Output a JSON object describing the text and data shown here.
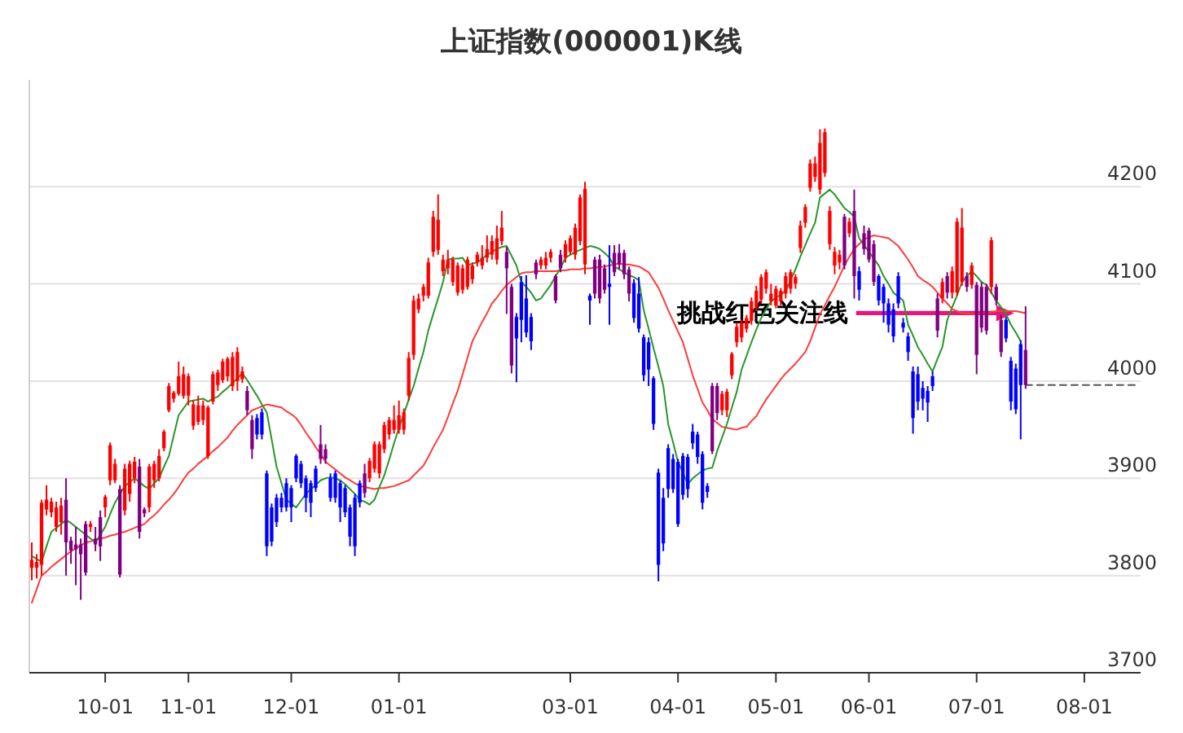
{
  "chart_data": {
    "type": "candlestick",
    "title": "上证指数(000001)K线",
    "categories": [
      null,
      null,
      null,
      null,
      null,
      null,
      null,
      null,
      null,
      null,
      null,
      null,
      null,
      null,
      null,
      "10-01",
      null,
      null,
      null,
      null,
      null,
      null,
      null,
      null,
      null,
      null,
      null,
      null,
      null,
      null,
      null,
      null,
      "11-01",
      null,
      null,
      null,
      null,
      null,
      null,
      null,
      null,
      null,
      null,
      null,
      null,
      null,
      null,
      null,
      null,
      null,
      null,
      null,
      null,
      "12-01",
      null,
      null,
      null,
      null,
      null,
      null,
      null,
      null,
      null,
      null,
      null,
      null,
      null,
      null,
      null,
      null,
      null,
      null,
      null,
      null,
      null,
      "01-01",
      null,
      null,
      null,
      null,
      null,
      null,
      null,
      null,
      null,
      null,
      null,
      null,
      null,
      null,
      null,
      null,
      null,
      null,
      null,
      null,
      null,
      null,
      null,
      null,
      null,
      null,
      null,
      null,
      null,
      null,
      null,
      null,
      null,
      null,
      "03-01",
      null,
      null,
      null,
      null,
      null,
      null,
      null,
      null,
      null,
      null,
      null,
      null,
      null,
      null,
      null,
      null,
      null,
      null,
      null,
      null,
      null,
      "04-01",
      null,
      null,
      null,
      null,
      null,
      null,
      null,
      null,
      null,
      null,
      null,
      null,
      null,
      null,
      null,
      null,
      null,
      null,
      null,
      "05-01",
      null,
      null,
      null,
      null,
      null,
      null,
      null,
      null,
      null,
      null,
      null,
      null,
      null,
      null,
      null,
      null,
      null,
      null,
      "06-01",
      null,
      null,
      null,
      null,
      null,
      null,
      null,
      null,
      null,
      null,
      null,
      null,
      null,
      null,
      null,
      null,
      null,
      null,
      null,
      null,
      null,
      "07-01",
      null,
      null,
      null,
      null,
      null,
      null,
      null,
      null,
      null,
      null,
      null,
      null,
      null,
      null,
      null,
      null,
      null,
      null,
      null,
      null,
      null,
      "08-01",
      null,
      null,
      null,
      null,
      null,
      null,
      null,
      null,
      null,
      null,
      null
    ],
    "ohlc": [
      [
        3808,
        3834,
        3795,
        3816
      ],
      [
        3808,
        3822,
        3797,
        3814
      ],
      [
        3811,
        3878,
        3800,
        3875
      ],
      [
        3868,
        3893,
        3862,
        3878
      ],
      [
        3865,
        3880,
        3860,
        3876
      ],
      [
        3850,
        3876,
        3845,
        3870
      ],
      [
        3855,
        3880,
        3842,
        3872
      ],
      [
        3878,
        3900,
        3800,
        3834
      ],
      [
        3836,
        3840,
        3812,
        3826
      ],
      [
        3832,
        3850,
        3790,
        3827
      ],
      [
        3832,
        3838,
        3775,
        3822
      ],
      [
        3853,
        3856,
        3800,
        3803
      ],
      [
        3850,
        3856,
        3845,
        3853
      ],
      [
        3838,
        3850,
        3825,
        3832
      ],
      [
        3860,
        3867,
        3815,
        3830
      ],
      [
        3870,
        3883,
        3860,
        3881
      ],
      [
        3898,
        3937,
        3893,
        3934
      ],
      [
        3898,
        3920,
        3895,
        3915
      ],
      [
        3889,
        3893,
        3798,
        3801
      ],
      [
        3867,
        3915,
        3862,
        3910
      ],
      [
        3884,
        3918,
        3876,
        3915
      ],
      [
        3900,
        3922,
        3895,
        3917
      ],
      [
        3912,
        3920,
        3838,
        3845
      ],
      [
        3868,
        3870,
        3860,
        3864
      ],
      [
        3870,
        3915,
        3865,
        3912
      ],
      [
        3898,
        3918,
        3890,
        3915
      ],
      [
        3900,
        3930,
        3897,
        3923
      ],
      [
        3931,
        3950,
        3928,
        3948
      ],
      [
        3970,
        3998,
        3968,
        3995
      ],
      [
        3982,
        3990,
        3978,
        3988
      ],
      [
        3987,
        4020,
        3985,
        4005
      ],
      [
        3985,
        4015,
        3982,
        4007
      ],
      [
        3985,
        4008,
        3975,
        4005
      ],
      [
        3954,
        3980,
        3950,
        3976
      ],
      [
        3958,
        3985,
        3955,
        3975
      ],
      [
        3960,
        3980,
        3955,
        3975
      ],
      [
        3923,
        3975,
        3920,
        3973
      ],
      [
        3979,
        4010,
        3976,
        4007
      ],
      [
        3996,
        4012,
        3990,
        4009
      ],
      [
        4001,
        4023,
        3998,
        4020
      ],
      [
        4005,
        4025,
        4000,
        4023
      ],
      [
        3995,
        4030,
        3990,
        4025
      ],
      [
        4000,
        4035,
        3990,
        4030
      ],
      [
        4002,
        4015,
        3998,
        4010
      ],
      [
        3990,
        3995,
        3965,
        3970
      ],
      [
        3960,
        3965,
        3920,
        3930
      ],
      [
        3962,
        3966,
        3940,
        3945
      ],
      [
        3968,
        3972,
        3940,
        3945
      ],
      [
        3905,
        3908,
        3820,
        3830
      ],
      [
        3870,
        3874,
        3830,
        3835
      ],
      [
        3880,
        3884,
        3850,
        3855
      ],
      [
        3880,
        3885,
        3865,
        3870
      ],
      [
        3895,
        3900,
        3866,
        3870
      ],
      [
        3890,
        3893,
        3855,
        3870
      ],
      [
        3923,
        3925,
        3896,
        3900
      ],
      [
        3915,
        3918,
        3890,
        3895
      ],
      [
        3900,
        3903,
        3865,
        3880
      ],
      [
        3895,
        3898,
        3860,
        3875
      ],
      [
        3910,
        3913,
        3886,
        3890
      ],
      [
        3935,
        3955,
        3915,
        3920
      ],
      [
        3930,
        3935,
        3915,
        3920
      ],
      [
        3900,
        3905,
        3876,
        3880
      ],
      [
        3905,
        3908,
        3875,
        3880
      ],
      [
        3895,
        3898,
        3855,
        3870
      ],
      [
        3890,
        3893,
        3860,
        3865
      ],
      [
        3870,
        3873,
        3830,
        3840
      ],
      [
        3880,
        3884,
        3820,
        3830
      ],
      [
        3895,
        3898,
        3870,
        3875
      ],
      [
        3905,
        3915,
        3880,
        3885
      ],
      [
        3900,
        3921,
        3896,
        3918
      ],
      [
        3910,
        3938,
        3906,
        3935
      ],
      [
        3905,
        3938,
        3900,
        3935
      ],
      [
        3930,
        3958,
        3926,
        3955
      ],
      [
        3945,
        3963,
        3940,
        3960
      ],
      [
        3950,
        3975,
        3946,
        3960
      ],
      [
        3950,
        3980,
        3946,
        3965
      ],
      [
        3950,
        3972,
        3945,
        3968
      ],
      [
        3985,
        4030,
        3980,
        4024
      ],
      [
        4027,
        4088,
        4022,
        4083
      ],
      [
        4074,
        4090,
        4070,
        4085
      ],
      [
        4088,
        4100,
        4082,
        4097
      ],
      [
        4088,
        4127,
        4085,
        4122
      ],
      [
        4133,
        4175,
        4128,
        4169
      ],
      [
        4135,
        4192,
        4130,
        4166
      ],
      [
        4113,
        4130,
        4108,
        4125
      ],
      [
        4116,
        4135,
        4110,
        4125
      ],
      [
        4102,
        4128,
        4098,
        4125
      ],
      [
        4091,
        4122,
        4088,
        4119
      ],
      [
        4094,
        4120,
        4090,
        4116
      ],
      [
        4097,
        4128,
        4094,
        4125
      ],
      [
        4105,
        4122,
        4100,
        4119
      ],
      [
        4122,
        4133,
        4118,
        4130
      ],
      [
        4119,
        4140,
        4115,
        4127
      ],
      [
        4127,
        4150,
        4122,
        4136
      ],
      [
        4130,
        4150,
        4125,
        4144
      ],
      [
        4125,
        4160,
        4120,
        4147
      ],
      [
        4144,
        4175,
        4140,
        4158
      ],
      [
        4133,
        4138,
        4069,
        4116
      ],
      [
        4097,
        4100,
        4008,
        4016
      ],
      [
        4066,
        4070,
        3999,
        4044
      ],
      [
        4102,
        4108,
        4040,
        4063
      ],
      [
        4085,
        4109,
        4045,
        4050
      ],
      [
        4066,
        4070,
        4032,
        4041
      ],
      [
        4122,
        4125,
        4105,
        4110
      ],
      [
        4119,
        4128,
        4115,
        4125
      ],
      [
        4119,
        4133,
        4115,
        4127
      ],
      [
        4127,
        4136,
        4122,
        4133
      ],
      [
        4108,
        4110,
        4080,
        4083
      ],
      [
        4130,
        4135,
        4112,
        4116
      ],
      [
        4127,
        4145,
        4122,
        4141
      ],
      [
        4133,
        4150,
        4130,
        4147
      ],
      [
        4130,
        4162,
        4125,
        4158
      ],
      [
        4144,
        4192,
        4140,
        4189
      ],
      [
        4120,
        4205,
        4110,
        4198
      ],
      [
        4088,
        4090,
        4058,
        4083
      ],
      [
        4125,
        4128,
        4085,
        4090
      ],
      [
        4125,
        4130,
        4080,
        4085
      ],
      [
        4116,
        4120,
        4090,
        4094
      ],
      [
        4100,
        4140,
        4058,
        4097
      ],
      [
        4132,
        4140,
        4108,
        4112
      ],
      [
        4132,
        4141,
        4115,
        4120
      ],
      [
        4132,
        4135,
        4105,
        4110
      ],
      [
        4115,
        4118,
        4082,
        4090
      ],
      [
        4101,
        4105,
        4060,
        4065
      ],
      [
        4090,
        4107,
        4050,
        4054
      ],
      [
        4045,
        4048,
        4000,
        4006
      ],
      [
        4040,
        4045,
        3995,
        4012
      ],
      [
        4003,
        4005,
        3950,
        3956
      ],
      [
        3906,
        3910,
        3794,
        3811
      ],
      [
        3880,
        3890,
        3825,
        3833
      ],
      [
        3931,
        3935,
        3880,
        3889
      ],
      [
        3920,
        3925,
        3885,
        3889
      ],
      [
        3917,
        3920,
        3850,
        3853
      ],
      [
        3923,
        3926,
        3878,
        3883
      ],
      [
        3922,
        3925,
        3880,
        3889
      ],
      [
        3948,
        3956,
        3930,
        3936
      ],
      [
        3945,
        3948,
        3915,
        3922
      ],
      [
        3925,
        3928,
        3868,
        3875
      ],
      [
        3892,
        3895,
        3880,
        3886
      ],
      [
        3995,
        3998,
        3925,
        3928
      ],
      [
        3995,
        3998,
        3960,
        3967
      ],
      [
        3970,
        3990,
        3965,
        3987
      ],
      [
        3970,
        3992,
        3963,
        3989
      ],
      [
        4006,
        4030,
        4002,
        4028
      ],
      [
        4040,
        4060,
        4035,
        4056
      ],
      [
        4045,
        4063,
        4040,
        4060
      ],
      [
        4054,
        4068,
        4050,
        4065
      ],
      [
        4062,
        4086,
        4058,
        4082
      ],
      [
        4076,
        4098,
        4072,
        4093
      ],
      [
        4084,
        4110,
        4080,
        4107
      ],
      [
        4095,
        4115,
        4090,
        4112
      ],
      [
        4082,
        4100,
        4078,
        4090
      ],
      [
        4078,
        4098,
        4075,
        4095
      ],
      [
        4082,
        4096,
        4078,
        4093
      ],
      [
        4090,
        4112,
        4085,
        4108
      ],
      [
        4095,
        4115,
        4090,
        4112
      ],
      [
        4100,
        4110,
        4095,
        4107
      ],
      [
        4137,
        4165,
        4132,
        4160
      ],
      [
        4163,
        4182,
        4158,
        4179
      ],
      [
        4199,
        4228,
        4195,
        4224
      ],
      [
        4210,
        4231,
        4205,
        4224
      ],
      [
        4197,
        4259,
        4192,
        4245
      ],
      [
        4214,
        4260,
        4210,
        4256
      ],
      [
        4141,
        4180,
        4135,
        4175
      ],
      [
        4119,
        4138,
        4110,
        4133
      ],
      [
        4122,
        4135,
        4115,
        4130
      ],
      [
        4169,
        4172,
        4115,
        4119
      ],
      [
        4152,
        4168,
        4148,
        4164
      ],
      [
        4175,
        4197,
        4085,
        4108
      ],
      [
        4113,
        4118,
        4083,
        4094
      ],
      [
        4152,
        4160,
        4130,
        4136
      ],
      [
        4155,
        4158,
        4122,
        4125
      ],
      [
        4141,
        4145,
        4098,
        4102
      ],
      [
        4108,
        4110,
        4078,
        4083
      ],
      [
        4097,
        4100,
        4060,
        4080
      ],
      [
        4080,
        4085,
        4050,
        4058
      ],
      [
        4074,
        4080,
        4040,
        4046
      ],
      [
        4108,
        4112,
        4075,
        4080
      ],
      [
        4060,
        4065,
        4050,
        4055
      ],
      [
        4046,
        4050,
        4021,
        4030
      ],
      [
        4010,
        4015,
        3946,
        3962
      ],
      [
        4007,
        4015,
        3970,
        3979
      ],
      [
        3993,
        4000,
        3970,
        3982
      ],
      [
        3990,
        3995,
        3958,
        3978
      ],
      [
        4005,
        4010,
        3990,
        3995
      ],
      [
        4085,
        4090,
        4045,
        4052
      ],
      [
        4085,
        4106,
        4080,
        4102
      ],
      [
        4108,
        4112,
        4085,
        4091
      ],
      [
        4091,
        4118,
        4085,
        4113
      ],
      [
        4091,
        4168,
        4088,
        4164
      ],
      [
        4102,
        4178,
        4098,
        4158
      ],
      [
        4108,
        4112,
        4092,
        4097
      ],
      [
        4099,
        4122,
        4095,
        4119
      ],
      [
        4099,
        4102,
        4007,
        4027
      ],
      [
        4097,
        4102,
        4050,
        4055
      ],
      [
        4097,
        4100,
        4048,
        4052
      ],
      [
        4097,
        4148,
        4090,
        4145
      ],
      [
        4097,
        4100,
        4078,
        4083
      ],
      [
        4063,
        4068,
        4025,
        4030
      ],
      [
        4063,
        4066,
        4040,
        4044
      ],
      [
        4021,
        4025,
        3970,
        3979
      ],
      [
        4013,
        4018,
        3966,
        3971
      ],
      [
        4038,
        4042,
        3940,
        3996
      ],
      [
        4032,
        4077,
        3992,
        3996
      ],
      null,
      null,
      null,
      null,
      null,
      null,
      null,
      null,
      null,
      null,
      null,
      null,
      null,
      null,
      null,
      null,
      null,
      null,
      null,
      null,
      null,
      null,
      null
    ],
    "colors": [
      "#ff0000",
      "#ff0000",
      "#ff0000",
      "#ff0000",
      "#ff0000",
      "#ff0000",
      "#ff0000",
      "#800080",
      "#800080",
      "#800080",
      "#800080",
      "#800080",
      "#ff0000",
      "#800080",
      "#800080",
      "#ff0000",
      "#ff0000",
      "#ff0000",
      "#800080",
      "#ff0000",
      "#ff0000",
      "#ff0000",
      "#800080",
      "#800080",
      "#ff0000",
      "#ff0000",
      "#ff0000",
      "#ff0000",
      "#ff0000",
      "#ff0000",
      "#ff0000",
      "#ff0000",
      "#ff0000",
      "#ff0000",
      "#ff0000",
      "#ff0000",
      "#ff0000",
      "#ff0000",
      "#ff0000",
      "#ff0000",
      "#ff0000",
      "#ff0000",
      "#ff0000",
      "#ff0000",
      "#800080",
      "#800080",
      "#0000ff",
      "#0000ff",
      "#0000ff",
      "#0000ff",
      "#0000ff",
      "#0000ff",
      "#0000ff",
      "#0000ff",
      "#0000ff",
      "#0000ff",
      "#0000ff",
      "#0000ff",
      "#0000ff",
      "#800080",
      "#800080",
      "#0000ff",
      "#0000ff",
      "#0000ff",
      "#0000ff",
      "#0000ff",
      "#0000ff",
      "#0000ff",
      "#800080",
      "#ff0000",
      "#ff0000",
      "#ff0000",
      "#ff0000",
      "#ff0000",
      "#ff0000",
      "#ff0000",
      "#ff0000",
      "#ff0000",
      "#ff0000",
      "#ff0000",
      "#ff0000",
      "#ff0000",
      "#ff0000",
      "#ff0000",
      "#ff0000",
      "#ff0000",
      "#ff0000",
      "#ff0000",
      "#ff0000",
      "#ff0000",
      "#ff0000",
      "#ff0000",
      "#ff0000",
      "#ff0000",
      "#ff0000",
      "#ff0000",
      "#ff0000",
      "#800080",
      "#800080",
      "#0000ff",
      "#0000ff",
      "#0000ff",
      "#0000ff",
      "#800080",
      "#ff0000",
      "#ff0000",
      "#ff0000",
      "#800080",
      "#800080",
      "#ff0000",
      "#ff0000",
      "#ff0000",
      "#ff0000",
      "#ff0000",
      "#0000ff",
      "#800080",
      "#800080",
      "#800080",
      "#0000ff",
      "#800080",
      "#800080",
      "#800080",
      "#800080",
      "#0000ff",
      "#0000ff",
      "#0000ff",
      "#0000ff",
      "#0000ff",
      "#0000ff",
      "#0000ff",
      "#0000ff",
      "#0000ff",
      "#0000ff",
      "#0000ff",
      "#0000ff",
      "#0000ff",
      "#0000ff",
      "#0000ff",
      "#0000ff",
      "#800080",
      "#800080",
      "#ff0000",
      "#ff0000",
      "#ff0000",
      "#ff0000",
      "#ff0000",
      "#ff0000",
      "#ff0000",
      "#ff0000",
      "#ff0000",
      "#ff0000",
      "#ff0000",
      "#ff0000",
      "#ff0000",
      "#ff0000",
      "#ff0000",
      "#ff0000",
      "#ff0000",
      "#ff0000",
      "#ff0000",
      "#ff0000",
      "#ff0000",
      "#ff0000",
      "#ff0000",
      "#ff0000",
      "#ff0000",
      "#800080",
      "#ff0000",
      "#800080",
      "#0000ff",
      "#800080",
      "#800080",
      "#800080",
      "#0000ff",
      "#0000ff",
      "#0000ff",
      "#0000ff",
      "#0000ff",
      "#0000ff",
      "#0000ff",
      "#0000ff",
      "#0000ff",
      "#0000ff",
      "#0000ff",
      "#0000ff",
      "#800080",
      "#ff0000",
      "#800080",
      "#ff0000",
      "#ff0000",
      "#ff0000",
      "#800080",
      "#ff0000",
      "#800080",
      "#800080",
      "#800080",
      "#ff0000",
      "#800080",
      "#800080",
      "#0000ff",
      "#0000ff",
      "#0000ff",
      "#0000ff",
      "#800080",
      null,
      null,
      null,
      null,
      null,
      null,
      null,
      null,
      null,
      null,
      null,
      null,
      null,
      null,
      null,
      null,
      null,
      null,
      null,
      null,
      null,
      null,
      null
    ],
    "series": [
      {
        "type": "line",
        "color": "#ff3b3b",
        "values": [
          3772,
          3786,
          3800,
          3804,
          3809,
          3813,
          3817,
          3821,
          3825,
          3828,
          3831,
          3834,
          3835,
          3837,
          3838,
          3839,
          3841,
          3842,
          3844,
          3845,
          3847,
          3849,
          3851,
          3853,
          3858,
          3862,
          3867,
          3873,
          3878,
          3884,
          3891,
          3899,
          3906,
          3910,
          3915,
          3919,
          3923,
          3928,
          3932,
          3937,
          3942,
          3949,
          3955,
          3960,
          3965,
          3970,
          3972,
          3974,
          3976,
          3975,
          3974,
          3973,
          3969,
          3966,
          3962,
          3955,
          3947,
          3940,
          3932,
          3925,
          3917,
          3913,
          3909,
          3905,
          3901,
          3898,
          3895,
          3892,
          3891,
          3890,
          3889,
          3890,
          3890,
          3891,
          3892,
          3894,
          3896,
          3898,
          3903,
          3908,
          3913,
          3922,
          3932,
          3941,
          3950,
          3963,
          3977,
          3990,
          4007,
          4024,
          4041,
          4051,
          4061,
          4070,
          4080,
          4086,
          4093,
          4099,
          4103,
          4107,
          4111,
          4112,
          4112,
          4113,
          4113,
          4113,
          4113,
          4113,
          4114,
          4114,
          4115,
          4115,
          4115,
          4116,
          4116,
          4117,
          4117,
          4118,
          4119,
          4120,
          4121,
          4120,
          4120,
          4119,
          4118,
          4115,
          4112,
          4104,
          4096,
          4085,
          4073,
          4062,
          4051,
          4040,
          4023,
          4006,
          3992,
          3978,
          3970,
          3961,
          3957,
          3953,
          3952,
          3951,
          3950,
          3952,
          3953,
          3959,
          3964,
          3973,
          3981,
          3988,
          3995,
          4002,
          4008,
          4013,
          4018,
          4024,
          4030,
          4041,
          4055,
          4069,
          4078,
          4088,
          4097,
          4108,
          4119,
          4128,
          4136,
          4141,
          4146,
          4148,
          4150,
          4149,
          4148,
          4147,
          4143,
          4139,
          4132,
          4125,
          4117,
          4108,
          4104,
          4101,
          4097,
          4091,
          4085,
          4080,
          4074,
          4072,
          4070,
          4070,
          4069,
          4069,
          4070,
          4070,
          4071,
          4072,
          4072,
          4072,
          4072,
          4072,
          4071,
          4070,
          null,
          null,
          null,
          null,
          null,
          null,
          null,
          null,
          null,
          null,
          null,
          null,
          null,
          null,
          null,
          null,
          null,
          null,
          null,
          null,
          null,
          null,
          null
        ]
      },
      {
        "type": "line",
        "color": "#2a962a",
        "values": [
          3820,
          3817,
          3814,
          3830,
          3845,
          3849,
          3853,
          3857,
          3854,
          3850,
          3846,
          3842,
          3838,
          3834,
          3842,
          3850,
          3863,
          3875,
          3884,
          3892,
          3896,
          3900,
          3896,
          3892,
          3889,
          3895,
          3900,
          3912,
          3923,
          3944,
          3965,
          3972,
          3979,
          3980,
          3981,
          3982,
          3979,
          3982,
          3984,
          3989,
          3993,
          3998,
          4003,
          4008,
          4001,
          3993,
          3985,
          3976,
          3968,
          3940,
          3912,
          3895,
          3878,
          3874,
          3870,
          3877,
          3884,
          3889,
          3893,
          3898,
          3900,
          3901,
          3900,
          3898,
          3894,
          3889,
          3884,
          3878,
          3876,
          3873,
          3878,
          3891,
          3903,
          3919,
          3936,
          3952,
          3966,
          3981,
          3995,
          4013,
          4030,
          4052,
          4069,
          4085,
          4102,
          4125,
          4126,
          4126,
          4127,
          4119,
          4121,
          4122,
          4126,
          4130,
          4133,
          4136,
          4138,
          4139,
          4129,
          4119,
          4102,
          4097,
          4091,
          4083,
          4085,
          4092,
          4099,
          4108,
          4116,
          4127,
          4130,
          4133,
          4135,
          4137,
          4139,
          4138,
          4136,
          4132,
          4127,
          4118,
          4115,
          4112,
          4109,
          4107,
          4104,
          4073,
          4054,
          4034,
          4015,
          3995,
          3956,
          3937,
          3917,
          3906,
          3894,
          3900,
          3904,
          3908,
          3910,
          3911,
          3928,
          3942,
          3956,
          3973,
          3989,
          4012,
          4026,
          4040,
          4053,
          4065,
          4074,
          4082,
          4086,
          4089,
          4093,
          4104,
          4115,
          4128,
          4140,
          4152,
          4163,
          4189,
          4193,
          4197,
          4192,
          4185,
          4178,
          4174,
          4169,
          4147,
          4140,
          4133,
          4126,
          4119,
          4108,
          4100,
          4091,
          4087,
          4083,
          4058,
          4047,
          4035,
          4027,
          4018,
          4010,
          4023,
          4035,
          4063,
          4076,
          4088,
          4102,
          4108,
          4113,
          4108,
          4102,
          4099,
          4091,
          4083,
          4076,
          4069,
          4058,
          4050,
          4041,
          null,
          null,
          null,
          null,
          null,
          null,
          null,
          null,
          null,
          null,
          null,
          null,
          null,
          null,
          null,
          null,
          null,
          null,
          null,
          null,
          null,
          null,
          null,
          null
        ]
      },
      {
        "type": "line",
        "color": "#555555",
        "line_style": "dashed",
        "values": [
          null,
          null,
          null,
          null,
          null,
          null,
          null,
          null,
          null,
          null,
          null,
          null,
          null,
          null,
          null,
          null,
          null,
          null,
          null,
          null,
          null,
          null,
          null,
          null,
          null,
          null,
          null,
          null,
          null,
          null,
          null,
          null,
          null,
          null,
          null,
          null,
          null,
          null,
          null,
          null,
          null,
          null,
          null,
          null,
          null,
          null,
          null,
          null,
          null,
          null,
          null,
          null,
          null,
          null,
          null,
          null,
          null,
          null,
          null,
          null,
          null,
          null,
          null,
          null,
          null,
          null,
          null,
          null,
          null,
          null,
          null,
          null,
          null,
          null,
          null,
          null,
          null,
          null,
          null,
          null,
          null,
          null,
          null,
          null,
          null,
          null,
          null,
          null,
          null,
          null,
          null,
          null,
          null,
          null,
          null,
          null,
          null,
          null,
          null,
          null,
          null,
          null,
          null,
          null,
          null,
          null,
          null,
          null,
          null,
          null,
          null,
          null,
          null,
          null,
          null,
          null,
          null,
          null,
          null,
          null,
          null,
          null,
          null,
          null,
          null,
          null,
          null,
          null,
          null,
          null,
          null,
          null,
          null,
          null,
          null,
          null,
          null,
          null,
          null,
          null,
          null,
          null,
          null,
          null,
          null,
          null,
          null,
          null,
          null,
          null,
          null,
          null,
          null,
          null,
          null,
          null,
          null,
          null,
          null,
          null,
          null,
          null,
          null,
          null,
          null,
          null,
          null,
          null,
          null,
          null,
          null,
          null,
          null,
          null,
          null,
          null,
          null,
          null,
          null,
          null,
          null,
          null,
          null,
          null,
          null,
          null,
          null,
          null,
          null,
          null,
          null,
          null,
          null,
          null,
          null,
          null,
          null,
          null,
          null,
          null,
          null,
          null,
          null,
          3996,
          3996,
          3996,
          3996,
          3996,
          3996,
          3996,
          3996,
          3996,
          3996,
          3996,
          3996,
          3996,
          3996,
          3996,
          3996,
          3996,
          3996,
          3996,
          3996,
          3996,
          3996,
          3996,
          3996
        ]
      }
    ],
    "ylim": [
      3700,
      4310
    ],
    "yticks": [
      3700,
      3800,
      3900,
      4000,
      4100,
      4200
    ],
    "grid": "y",
    "annotations": [
      {
        "text": "挑战红色关注线",
        "y": 4070
      }
    ]
  }
}
